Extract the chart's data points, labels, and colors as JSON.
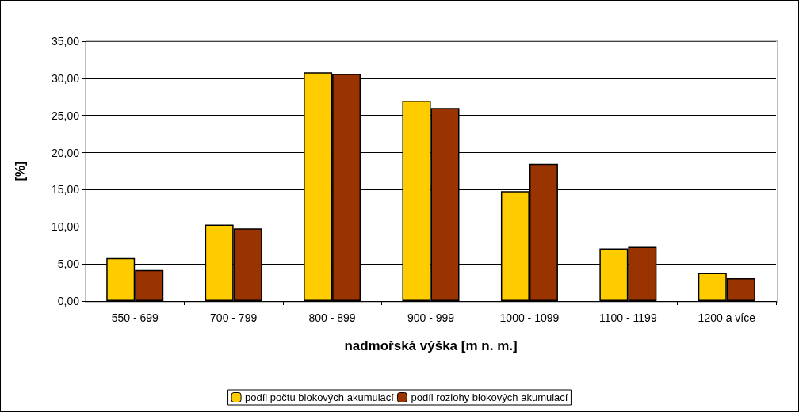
{
  "chart_data": {
    "type": "bar",
    "xlabel": "nadmořská výška [m n. m.]",
    "ylabel": "[%]",
    "categories": [
      "550 - 699",
      "700 - 799",
      "800 - 899",
      "900 - 999",
      "1000 - 1099",
      "1100 - 1199",
      "1200 a více"
    ],
    "series": [
      {
        "name": "podíl počtu blokových akumulací",
        "color": "#ffcc00",
        "values": [
          5.8,
          10.3,
          30.8,
          27.0,
          14.8,
          7.1,
          3.8
        ]
      },
      {
        "name": "podíl rozlohy blokových akumulací",
        "color": "#993300",
        "values": [
          4.2,
          9.8,
          30.6,
          26.0,
          18.5,
          7.3,
          3.1
        ]
      }
    ],
    "ylim": [
      0,
      35
    ],
    "yticks": [
      {
        "value": 0,
        "label": "0,00"
      },
      {
        "value": 5,
        "label": "5,00"
      },
      {
        "value": 10,
        "label": "10,00"
      },
      {
        "value": 15,
        "label": "15,00"
      },
      {
        "value": 20,
        "label": "20,00"
      },
      {
        "value": 25,
        "label": "25,00"
      },
      {
        "value": 30,
        "label": "30,00"
      },
      {
        "value": 35,
        "label": "35,00"
      }
    ],
    "grid": "y",
    "legend": "bottom"
  }
}
